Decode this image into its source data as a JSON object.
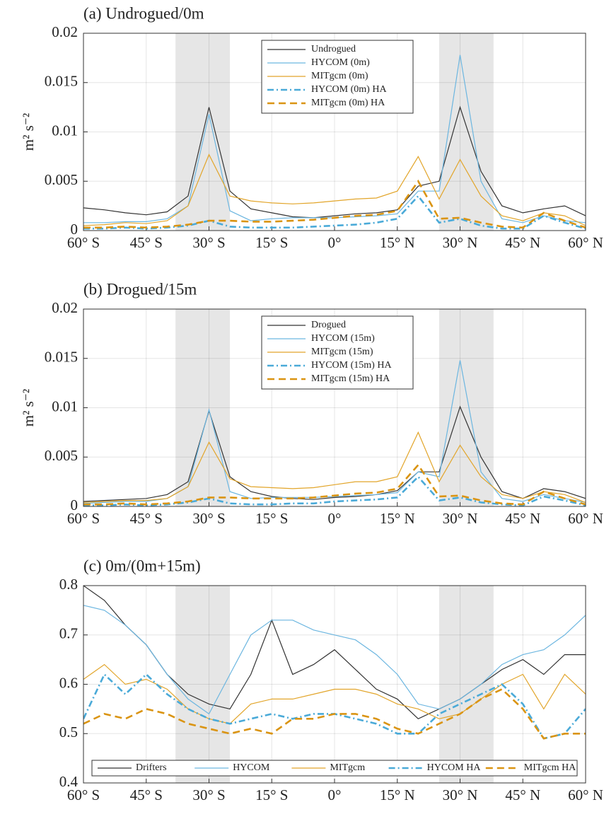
{
  "chart_data": [
    {
      "type": "line",
      "title": "(a) Undrogued/0m",
      "ylabel": "m² s⁻²",
      "legend": "top",
      "grid": true,
      "shaded_regions": [
        [
          -38,
          -25
        ],
        [
          25,
          38
        ]
      ],
      "x": [
        -60,
        -55,
        -50,
        -45,
        -40,
        -35,
        -30,
        -25,
        -20,
        -15,
        -10,
        -5,
        0,
        5,
        10,
        15,
        20,
        25,
        30,
        35,
        40,
        45,
        50,
        55,
        60
      ],
      "xlim": [
        -60,
        60
      ],
      "xticks": [
        {
          "value": -60,
          "label": "60° S"
        },
        {
          "value": -45,
          "label": "45° S"
        },
        {
          "value": -30,
          "label": "30° S"
        },
        {
          "value": -15,
          "label": "15° S"
        },
        {
          "value": 0,
          "label": "0°"
        },
        {
          "value": 15,
          "label": "15° N"
        },
        {
          "value": 30,
          "label": "30° N"
        },
        {
          "value": 45,
          "label": "45° N"
        },
        {
          "value": 60,
          "label": "60° N"
        }
      ],
      "ylim": [
        0,
        0.02
      ],
      "yticks": [
        0,
        0.005,
        0.01,
        0.015,
        0.02
      ],
      "series": [
        {
          "name": "Undrogued",
          "color": "#333333",
          "dash": "solid",
          "values": [
            0.0023,
            0.0021,
            0.0018,
            0.0016,
            0.0019,
            0.0035,
            0.0125,
            0.004,
            0.0022,
            0.0018,
            0.0014,
            0.0013,
            0.0015,
            0.0017,
            0.0018,
            0.0021,
            0.0045,
            0.005,
            0.0125,
            0.006,
            0.0025,
            0.0018,
            0.0022,
            0.0025,
            0.0015
          ]
        },
        {
          "name": "HYCOM (0m)",
          "color": "#6cb6e0",
          "dash": "solid",
          "values": [
            0.0008,
            0.0008,
            0.0009,
            0.0009,
            0.0012,
            0.0025,
            0.0118,
            0.002,
            0.001,
            0.0012,
            0.0013,
            0.0013,
            0.0013,
            0.0014,
            0.0015,
            0.0017,
            0.004,
            0.004,
            0.0178,
            0.005,
            0.0012,
            0.0008,
            0.0015,
            0.001,
            0.0008
          ]
        },
        {
          "name": "MITgcm (0m)",
          "color": "#e2a52a",
          "dash": "solid",
          "values": [
            0.0005,
            0.0006,
            0.0008,
            0.0007,
            0.001,
            0.0025,
            0.0077,
            0.0035,
            0.003,
            0.0028,
            0.0027,
            0.0028,
            0.003,
            0.0032,
            0.0033,
            0.004,
            0.0075,
            0.0032,
            0.0072,
            0.0035,
            0.0015,
            0.001,
            0.0018,
            0.0015,
            0.0005
          ]
        },
        {
          "name": "HYCOM (0m) HA",
          "color": "#4aaad8",
          "dash": "dashdot",
          "values": [
            0.0002,
            0.0002,
            0.0003,
            0.0002,
            0.0003,
            0.0005,
            0.001,
            0.0004,
            0.0003,
            0.0003,
            0.0003,
            0.0004,
            0.0005,
            0.0006,
            0.0008,
            0.0012,
            0.0035,
            0.0008,
            0.0012,
            0.0005,
            0.0002,
            0.0002,
            0.0015,
            0.0008,
            0.0002
          ]
        },
        {
          "name": "MITgcm (0m) HA",
          "color": "#da9412",
          "dash": "dash",
          "values": [
            0.0003,
            0.0003,
            0.0004,
            0.0003,
            0.0004,
            0.0006,
            0.001,
            0.001,
            0.0009,
            0.0009,
            0.001,
            0.0011,
            0.0013,
            0.0015,
            0.0016,
            0.002,
            0.005,
            0.0012,
            0.0013,
            0.0008,
            0.0004,
            0.0003,
            0.0018,
            0.001,
            0.0003
          ]
        }
      ]
    },
    {
      "type": "line",
      "title": "(b) Drogued/15m",
      "ylabel": "m² s⁻²",
      "legend": "top",
      "grid": true,
      "shaded_regions": [
        [
          -38,
          -25
        ],
        [
          25,
          38
        ]
      ],
      "x": [
        -60,
        -55,
        -50,
        -45,
        -40,
        -35,
        -30,
        -25,
        -20,
        -15,
        -10,
        -5,
        0,
        5,
        10,
        15,
        20,
        25,
        30,
        35,
        40,
        45,
        50,
        55,
        60
      ],
      "xlim": [
        -60,
        60
      ],
      "xticks": [
        {
          "value": -60,
          "label": "60° S"
        },
        {
          "value": -45,
          "label": "45° S"
        },
        {
          "value": -30,
          "label": "30° S"
        },
        {
          "value": -15,
          "label": "15° S"
        },
        {
          "value": 0,
          "label": "0°"
        },
        {
          "value": 15,
          "label": "15° N"
        },
        {
          "value": 30,
          "label": "30° N"
        },
        {
          "value": 45,
          "label": "45° N"
        },
        {
          "value": 60,
          "label": "60° N"
        }
      ],
      "ylim": [
        0,
        0.02
      ],
      "yticks": [
        0,
        0.005,
        0.01,
        0.015,
        0.02
      ],
      "series": [
        {
          "name": "Drogued",
          "color": "#333333",
          "dash": "solid",
          "values": [
            0.0005,
            0.0006,
            0.0007,
            0.0008,
            0.0012,
            0.0025,
            0.0097,
            0.003,
            0.0015,
            0.001,
            0.0008,
            0.0007,
            0.0009,
            0.001,
            0.0012,
            0.0016,
            0.0035,
            0.0035,
            0.0101,
            0.005,
            0.0015,
            0.0008,
            0.0018,
            0.0015,
            0.0008
          ]
        },
        {
          "name": "HYCOM (15m)",
          "color": "#6cb6e0",
          "dash": "solid",
          "values": [
            0.0003,
            0.0004,
            0.0005,
            0.0005,
            0.0008,
            0.002,
            0.0098,
            0.0015,
            0.0008,
            0.0009,
            0.0009,
            0.0009,
            0.001,
            0.0011,
            0.0012,
            0.0014,
            0.0035,
            0.003,
            0.0148,
            0.0035,
            0.0008,
            0.0005,
            0.0012,
            0.0008,
            0.0004
          ]
        },
        {
          "name": "MITgcm (15m)",
          "color": "#e2a52a",
          "dash": "solid",
          "values": [
            0.0004,
            0.0005,
            0.0006,
            0.0006,
            0.0008,
            0.002,
            0.0065,
            0.0028,
            0.002,
            0.0019,
            0.0018,
            0.0019,
            0.0022,
            0.0025,
            0.0025,
            0.003,
            0.0075,
            0.0025,
            0.0062,
            0.003,
            0.0012,
            0.0008,
            0.0015,
            0.0012,
            0.0004
          ]
        },
        {
          "name": "HYCOM (15m) HA",
          "color": "#4aaad8",
          "dash": "dashdot",
          "values": [
            0.0001,
            0.0001,
            0.0002,
            0.0001,
            0.0002,
            0.0004,
            0.0008,
            0.0003,
            0.0002,
            0.0002,
            0.0003,
            0.0003,
            0.0005,
            0.0006,
            0.0007,
            0.0009,
            0.003,
            0.0006,
            0.0009,
            0.0004,
            0.0002,
            0.0001,
            0.001,
            0.0006,
            0.0001
          ]
        },
        {
          "name": "MITgcm (15m) HA",
          "color": "#da9412",
          "dash": "dash",
          "values": [
            0.0002,
            0.0002,
            0.0003,
            0.0002,
            0.0003,
            0.0005,
            0.0009,
            0.0009,
            0.0008,
            0.0008,
            0.0008,
            0.0009,
            0.0011,
            0.0013,
            0.0014,
            0.0018,
            0.0042,
            0.001,
            0.0011,
            0.0006,
            0.0003,
            0.0002,
            0.0015,
            0.0008,
            0.0002
          ]
        }
      ]
    },
    {
      "type": "line",
      "title": "(c) 0m/(0m+15m)",
      "legend": "bottom",
      "grid": true,
      "shaded_regions": [
        [
          -38,
          -25
        ],
        [
          25,
          38
        ]
      ],
      "x": [
        -60,
        -55,
        -50,
        -45,
        -40,
        -35,
        -30,
        -25,
        -20,
        -15,
        -10,
        -5,
        0,
        5,
        10,
        15,
        20,
        25,
        30,
        35,
        40,
        45,
        50,
        55,
        60
      ],
      "xlim": [
        -60,
        60
      ],
      "xticks": [
        {
          "value": -60,
          "label": "60° S"
        },
        {
          "value": -45,
          "label": "45° S"
        },
        {
          "value": -30,
          "label": "30° S"
        },
        {
          "value": -15,
          "label": "15° S"
        },
        {
          "value": 0,
          "label": "0°"
        },
        {
          "value": 15,
          "label": "15° N"
        },
        {
          "value": 30,
          "label": "30° N"
        },
        {
          "value": 45,
          "label": "45° N"
        },
        {
          "value": 60,
          "label": "60° N"
        }
      ],
      "ylim": [
        0.4,
        0.8
      ],
      "yticks": [
        0.4,
        0.5,
        0.6,
        0.7,
        0.8
      ],
      "series": [
        {
          "name": "Drifters",
          "color": "#333333",
          "dash": "solid",
          "values": [
            0.8,
            0.77,
            0.72,
            0.68,
            0.62,
            0.58,
            0.56,
            0.55,
            0.62,
            0.73,
            0.62,
            0.64,
            0.67,
            0.63,
            0.59,
            0.57,
            0.53,
            0.55,
            0.57,
            0.6,
            0.63,
            0.65,
            0.62,
            0.66,
            0.66
          ]
        },
        {
          "name": "HYCOM",
          "color": "#6cb6e0",
          "dash": "solid",
          "values": [
            0.76,
            0.75,
            0.72,
            0.68,
            0.62,
            0.57,
            0.54,
            0.62,
            0.7,
            0.73,
            0.73,
            0.71,
            0.7,
            0.69,
            0.66,
            0.62,
            0.56,
            0.55,
            0.57,
            0.6,
            0.64,
            0.66,
            0.67,
            0.7,
            0.74
          ]
        },
        {
          "name": "MITgcm",
          "color": "#e2a52a",
          "dash": "solid",
          "values": [
            0.61,
            0.64,
            0.6,
            0.61,
            0.59,
            0.55,
            0.53,
            0.52,
            0.56,
            0.57,
            0.57,
            0.58,
            0.59,
            0.59,
            0.58,
            0.56,
            0.55,
            0.53,
            0.54,
            0.57,
            0.6,
            0.62,
            0.55,
            0.62,
            0.58
          ]
        },
        {
          "name": "HYCOM HA",
          "color": "#4aaad8",
          "dash": "dashdot",
          "values": [
            0.53,
            0.62,
            0.58,
            0.62,
            0.58,
            0.55,
            0.53,
            0.52,
            0.53,
            0.54,
            0.53,
            0.54,
            0.54,
            0.53,
            0.52,
            0.5,
            0.5,
            0.54,
            0.56,
            0.58,
            0.6,
            0.56,
            0.49,
            0.5,
            0.55
          ]
        },
        {
          "name": "MITgcm HA",
          "color": "#da9412",
          "dash": "dash",
          "values": [
            0.52,
            0.54,
            0.53,
            0.55,
            0.54,
            0.52,
            0.51,
            0.5,
            0.51,
            0.5,
            0.53,
            0.53,
            0.54,
            0.54,
            0.53,
            0.51,
            0.5,
            0.52,
            0.54,
            0.57,
            0.59,
            0.55,
            0.49,
            0.5,
            0.5
          ]
        }
      ]
    }
  ]
}
